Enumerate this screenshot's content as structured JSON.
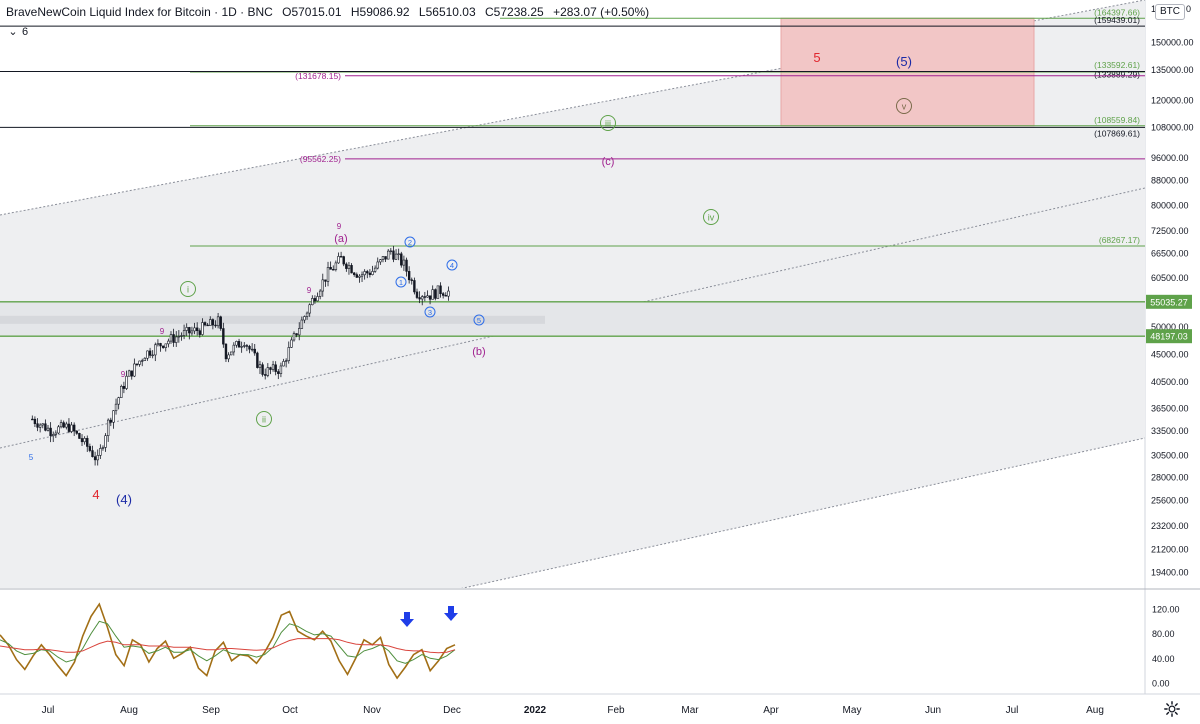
{
  "header": {
    "symbol_title": "BraveNewCoin Liquid Index for Bitcoin · 1D · BNC",
    "open": "O57015.01",
    "high": "H59086.92",
    "low": "L56510.03",
    "close": "C57238.25",
    "change": "+283.07 (+0.50%)",
    "indicator_count": "6",
    "currency_badge": "BTC",
    "top_clipped_label": "17",
    "top_right_clipped": "0"
  },
  "colors": {
    "candle": "#131722",
    "green_level": "#5fa24a",
    "black_level": "#131722",
    "magenta": "#a0218f",
    "red_wave": "#e0272e",
    "navy_wave": "#1b2aa6",
    "blue_wave": "#2f6ee8",
    "channel_fill": "#eeeff1",
    "target_box": "#f2c6c6",
    "rsi_brown": "#a26f16",
    "rsi_green": "#4f8f3e",
    "rsi_red": "#d9453d",
    "arrow_blue": "#1f3ee8"
  },
  "chart_data": {
    "type": "line",
    "title": "BraveNewCoin Liquid Index for Bitcoin",
    "y_scale": "log",
    "ylim": [
      17400,
      170000
    ],
    "price_axis_ticks": [
      150000,
      135000,
      120000,
      108000,
      96000,
      88000,
      80000,
      72500,
      66500,
      60500,
      55000,
      50000,
      45000,
      40500,
      36500,
      33500,
      30500,
      28000,
      25600,
      23200,
      21200,
      19400
    ],
    "price_axis_labels": [
      "150000.00",
      "135000.00",
      "120000.00",
      "108000.00",
      "96000.00",
      "88000.00",
      "80000.00",
      "72500.00",
      "66500.00",
      "60500.00",
      "55000.00",
      "50000.00",
      "45000.00",
      "40500.00",
      "36500.00",
      "33500.00",
      "30500.00",
      "28000.00",
      "25600.00",
      "23200.00",
      "21200.00",
      "19400.00"
    ],
    "time_axis": [
      "Jul",
      "Aug",
      "Sep",
      "Oct",
      "Nov",
      "Dec",
      "2022",
      "Feb",
      "Mar",
      "Apr",
      "May",
      "Jun",
      "Jul",
      "Aug"
    ],
    "price_series": {
      "x": [
        "Jun 25",
        "Jul 2",
        "Jul 9",
        "Jul 16",
        "Jul 20",
        "Jul 24",
        "Jul 31",
        "Aug 7",
        "Aug 14",
        "Aug 21",
        "Aug 28",
        "Sep 4",
        "Sep 7",
        "Sep 14",
        "Sep 21",
        "Sep 28",
        "Oct 4",
        "Oct 11",
        "Oct 16",
        "Oct 21",
        "Oct 28",
        "Nov 2",
        "Nov 9",
        "Nov 14",
        "Nov 19",
        "Nov 24",
        "Nov 28",
        "Dec 1"
      ],
      "y": [
        35000,
        33500,
        34000,
        31500,
        29800,
        34500,
        41000,
        45000,
        47000,
        48500,
        49500,
        51000,
        45000,
        47500,
        42000,
        42500,
        49000,
        56500,
        61500,
        65000,
        61000,
        62000,
        67000,
        63500,
        57000,
        56500,
        57500,
        57200
      ]
    },
    "horizontal_levels": [
      {
        "value": 164397.66,
        "label": "(164397.66)",
        "color": "green"
      },
      {
        "value": 159439.01,
        "label": "(159439.01)",
        "color": "black"
      },
      {
        "value": 133592.61,
        "label": "(133592.61)",
        "color": "green"
      },
      {
        "value": 133889.29,
        "label": "(133889.29)",
        "color": "black"
      },
      {
        "value": 131678.15,
        "label": "(131678.15)",
        "color": "magenta"
      },
      {
        "value": 108559.84,
        "label": "(108559.84)",
        "color": "green"
      },
      {
        "value": 107869.61,
        "label": "(107869.61)",
        "color": "black"
      },
      {
        "value": 95562.25,
        "label": "(95562.25)",
        "color": "magenta"
      },
      {
        "value": 68267.17,
        "label": "(68267.17)",
        "color": "green"
      }
    ],
    "price_tags": [
      {
        "value": 55035.27,
        "label": "55035.27"
      },
      {
        "value": 48197.03,
        "label": "48197.03"
      }
    ],
    "wave_labels": [
      {
        "text": "4",
        "color": "red"
      },
      {
        "text": "(4)",
        "color": "navy"
      },
      {
        "text": "i",
        "color": "green",
        "circled": true
      },
      {
        "text": "ii",
        "color": "green",
        "circled": true
      },
      {
        "text": "iii",
        "color": "green",
        "circled": true
      },
      {
        "text": "iv",
        "color": "green",
        "circled": true
      },
      {
        "text": "v",
        "color": "brown",
        "circled": true
      },
      {
        "text": "(a)",
        "color": "magenta"
      },
      {
        "text": "(b)",
        "color": "magenta"
      },
      {
        "text": "(c)",
        "color": "magenta"
      },
      {
        "text": "1",
        "color": "blue",
        "circled": true
      },
      {
        "text": "2",
        "color": "blue",
        "circled": true
      },
      {
        "text": "3",
        "color": "blue",
        "circled": true
      },
      {
        "text": "4",
        "color": "blue",
        "circled": true
      },
      {
        "text": "5",
        "color": "blue",
        "circled": true
      },
      {
        "text": "5",
        "color": "red"
      },
      {
        "text": "(5)",
        "color": "navy"
      },
      {
        "text": "9",
        "color": "magenta"
      },
      {
        "text": "9",
        "color": "magenta"
      },
      {
        "text": "9",
        "color": "magenta"
      },
      {
        "text": "9",
        "color": "magenta"
      },
      {
        "text": "5",
        "color": "blue"
      }
    ],
    "oscillator": {
      "type": "line",
      "ylim": [
        -10,
        135
      ],
      "ticks": [
        120,
        80,
        40,
        0
      ],
      "tick_labels": [
        "120.00",
        "80.00",
        "40.00",
        "0.00"
      ],
      "series": [
        {
          "color": "brown",
          "values": [
            78,
            62,
            38,
            22,
            44,
            62,
            46,
            28,
            12,
            34,
            76,
            108,
            128,
            90,
            46,
            28,
            70,
            62,
            34,
            56,
            68,
            40,
            48,
            58,
            24,
            12,
            52,
            66,
            36,
            46,
            44,
            32,
            50,
            74,
            110,
            116,
            84,
            76,
            70,
            84,
            68,
            36,
            14,
            40,
            70,
            62,
            74,
            30,
            8,
            26,
            46,
            54,
            20,
            36,
            56,
            62
          ]
        },
        {
          "color": "green",
          "values": [
            70,
            64,
            52,
            46,
            48,
            54,
            52,
            42,
            34,
            38,
            56,
            80,
            100,
            96,
            76,
            58,
            60,
            58,
            48,
            52,
            58,
            50,
            50,
            54,
            44,
            36,
            44,
            54,
            48,
            46,
            46,
            42,
            46,
            58,
            82,
            96,
            92,
            84,
            78,
            80,
            76,
            60,
            44,
            42,
            52,
            56,
            62,
            52,
            36,
            32,
            38,
            46,
            40,
            38,
            44,
            54
          ]
        },
        {
          "color": "red",
          "values": [
            60,
            58,
            56,
            54,
            54,
            55,
            54,
            52,
            50,
            50,
            52,
            58,
            64,
            68,
            66,
            62,
            62,
            62,
            60,
            60,
            60,
            58,
            58,
            58,
            56,
            54,
            54,
            56,
            56,
            55,
            54,
            53,
            54,
            57,
            63,
            69,
            72,
            72,
            72,
            72,
            72,
            70,
            66,
            63,
            62,
            62,
            62,
            60,
            56,
            53,
            52,
            52,
            50,
            49,
            50,
            54
          ]
        }
      ]
    }
  }
}
